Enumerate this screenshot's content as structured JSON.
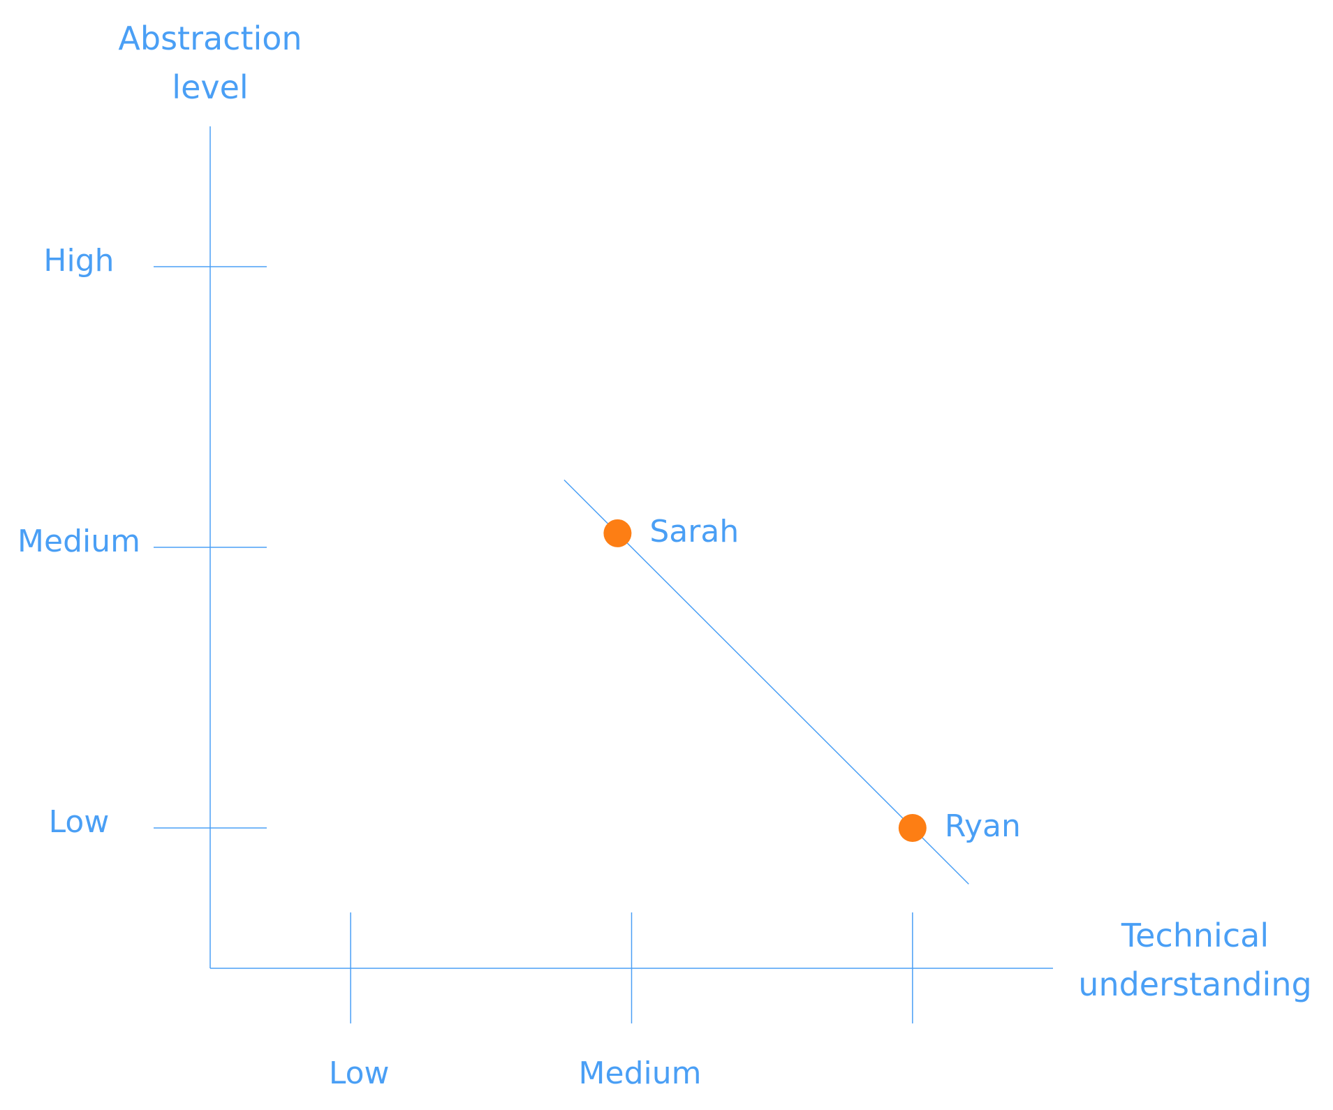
{
  "chart_data": {
    "type": "scatter",
    "x_axis_label": "Technical understanding",
    "y_axis_label": "Abstraction level",
    "xlim": [
      0.5,
      3.5
    ],
    "ylim": [
      0.5,
      3.5
    ],
    "xticks": [
      {
        "value": 1,
        "label": "Low"
      },
      {
        "value": 2,
        "label": "Medium"
      },
      {
        "value": 3,
        "label": null
      }
    ],
    "yticks": [
      {
        "value": 1,
        "label": "Low"
      },
      {
        "value": 2,
        "label": "Medium"
      },
      {
        "value": 3,
        "label": "High"
      }
    ],
    "axis_color": "#4a9ff5",
    "series": [
      {
        "color": "#fd7e14",
        "point_labels": [
          "Sarah",
          "Ryan"
        ],
        "x": [
          1.95,
          3.0
        ],
        "values": [
          2.05,
          1.0
        ]
      }
    ],
    "trend_line": {
      "x": [
        1.76,
        3.2
      ],
      "y": [
        2.24,
        0.8
      ]
    }
  }
}
